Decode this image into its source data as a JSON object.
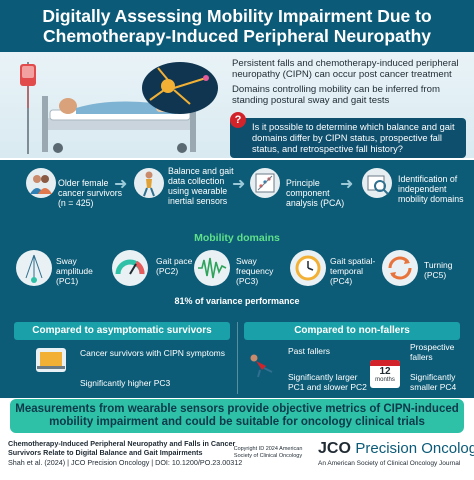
{
  "title": {
    "line1": "Digitally Assessing Mobility Impairment Due to",
    "line2": "Chemotherapy-Induced Peripheral Neuropathy"
  },
  "intro": {
    "p1": "Persistent falls and chemotherapy-induced peripheral neuropathy (CIPN) can occur post cancer treatment",
    "p2": "Domains controlling mobility can be inferred from standing postural sway and gait tests",
    "question": "Is it possible to determine which balance and gait domains differ by CIPN status, prospective fall status, and retrospective fall history?",
    "question_icon": "?"
  },
  "steps": [
    {
      "label": "Older female cancer survivors (n = 425)",
      "icon": "people-icon"
    },
    {
      "label": "Balance and gait data collection using wearable inertial sensors",
      "icon": "walker-icon"
    },
    {
      "label": "Principle component analysis (PCA)",
      "icon": "chart-icon"
    },
    {
      "label": "Identification of independent mobility domains",
      "icon": "magnifier-icon"
    }
  ],
  "mobility": {
    "title": "Mobility domains",
    "domains": [
      {
        "label": "Sway amplitude (PC1)",
        "icon": "pendulum-icon"
      },
      {
        "label": "Gait pace (PC2)",
        "icon": "gauge-icon"
      },
      {
        "label": "Sway frequency (PC3)",
        "icon": "wave-icon"
      },
      {
        "label": "Gait spatial-temporal (PC4)",
        "icon": "clock-icon"
      },
      {
        "label": "Turning (PC5)",
        "icon": "rotate-icon"
      }
    ],
    "variance": "81% of variance performance"
  },
  "compare_left": {
    "heading": "Compared to asymptomatic survivors",
    "line1": "Cancer survivors with CIPN symptoms",
    "line2": "Significantly higher PC3"
  },
  "compare_right": {
    "heading": "Compared to non-fallers",
    "past": "Past fallers",
    "past_result": "Significantly larger PC1 and slower PC2",
    "prospective": "Prospective fallers",
    "prospective_result": "Significantly smaller PC4",
    "calendar_num": "12",
    "calendar_word": "months"
  },
  "conclusion": "Measurements from wearable sensors provide objective metrics of CIPN-induced mobility impairment and could be suitable for oncology clinical trials",
  "footer": {
    "cite_title": "Chemotherapy-Induced Peripheral Neuropathy and Falls in Cancer Survivors Relate to Digital Balance and Gait Impairments",
    "cite_ref": "Shah et al. (2024) | JCO Precision Oncology | DOI: 10.1200/PO.23.00312",
    "copyright": "Copyright ID 2024 American Society of Clinical Oncology",
    "brand_short": "JCO",
    "brand_rest": "Precision Oncology",
    "brand_sub": "An American Society of Clinical Oncology Journal"
  },
  "colors": {
    "title_bg": "#0b5b78",
    "panel_bg": "#0d5c77",
    "accent_green": "#5ee08a",
    "teal": "#1aa0a8",
    "conclusion_bg": "#2ec1a7",
    "question_red": "#d2232a"
  }
}
